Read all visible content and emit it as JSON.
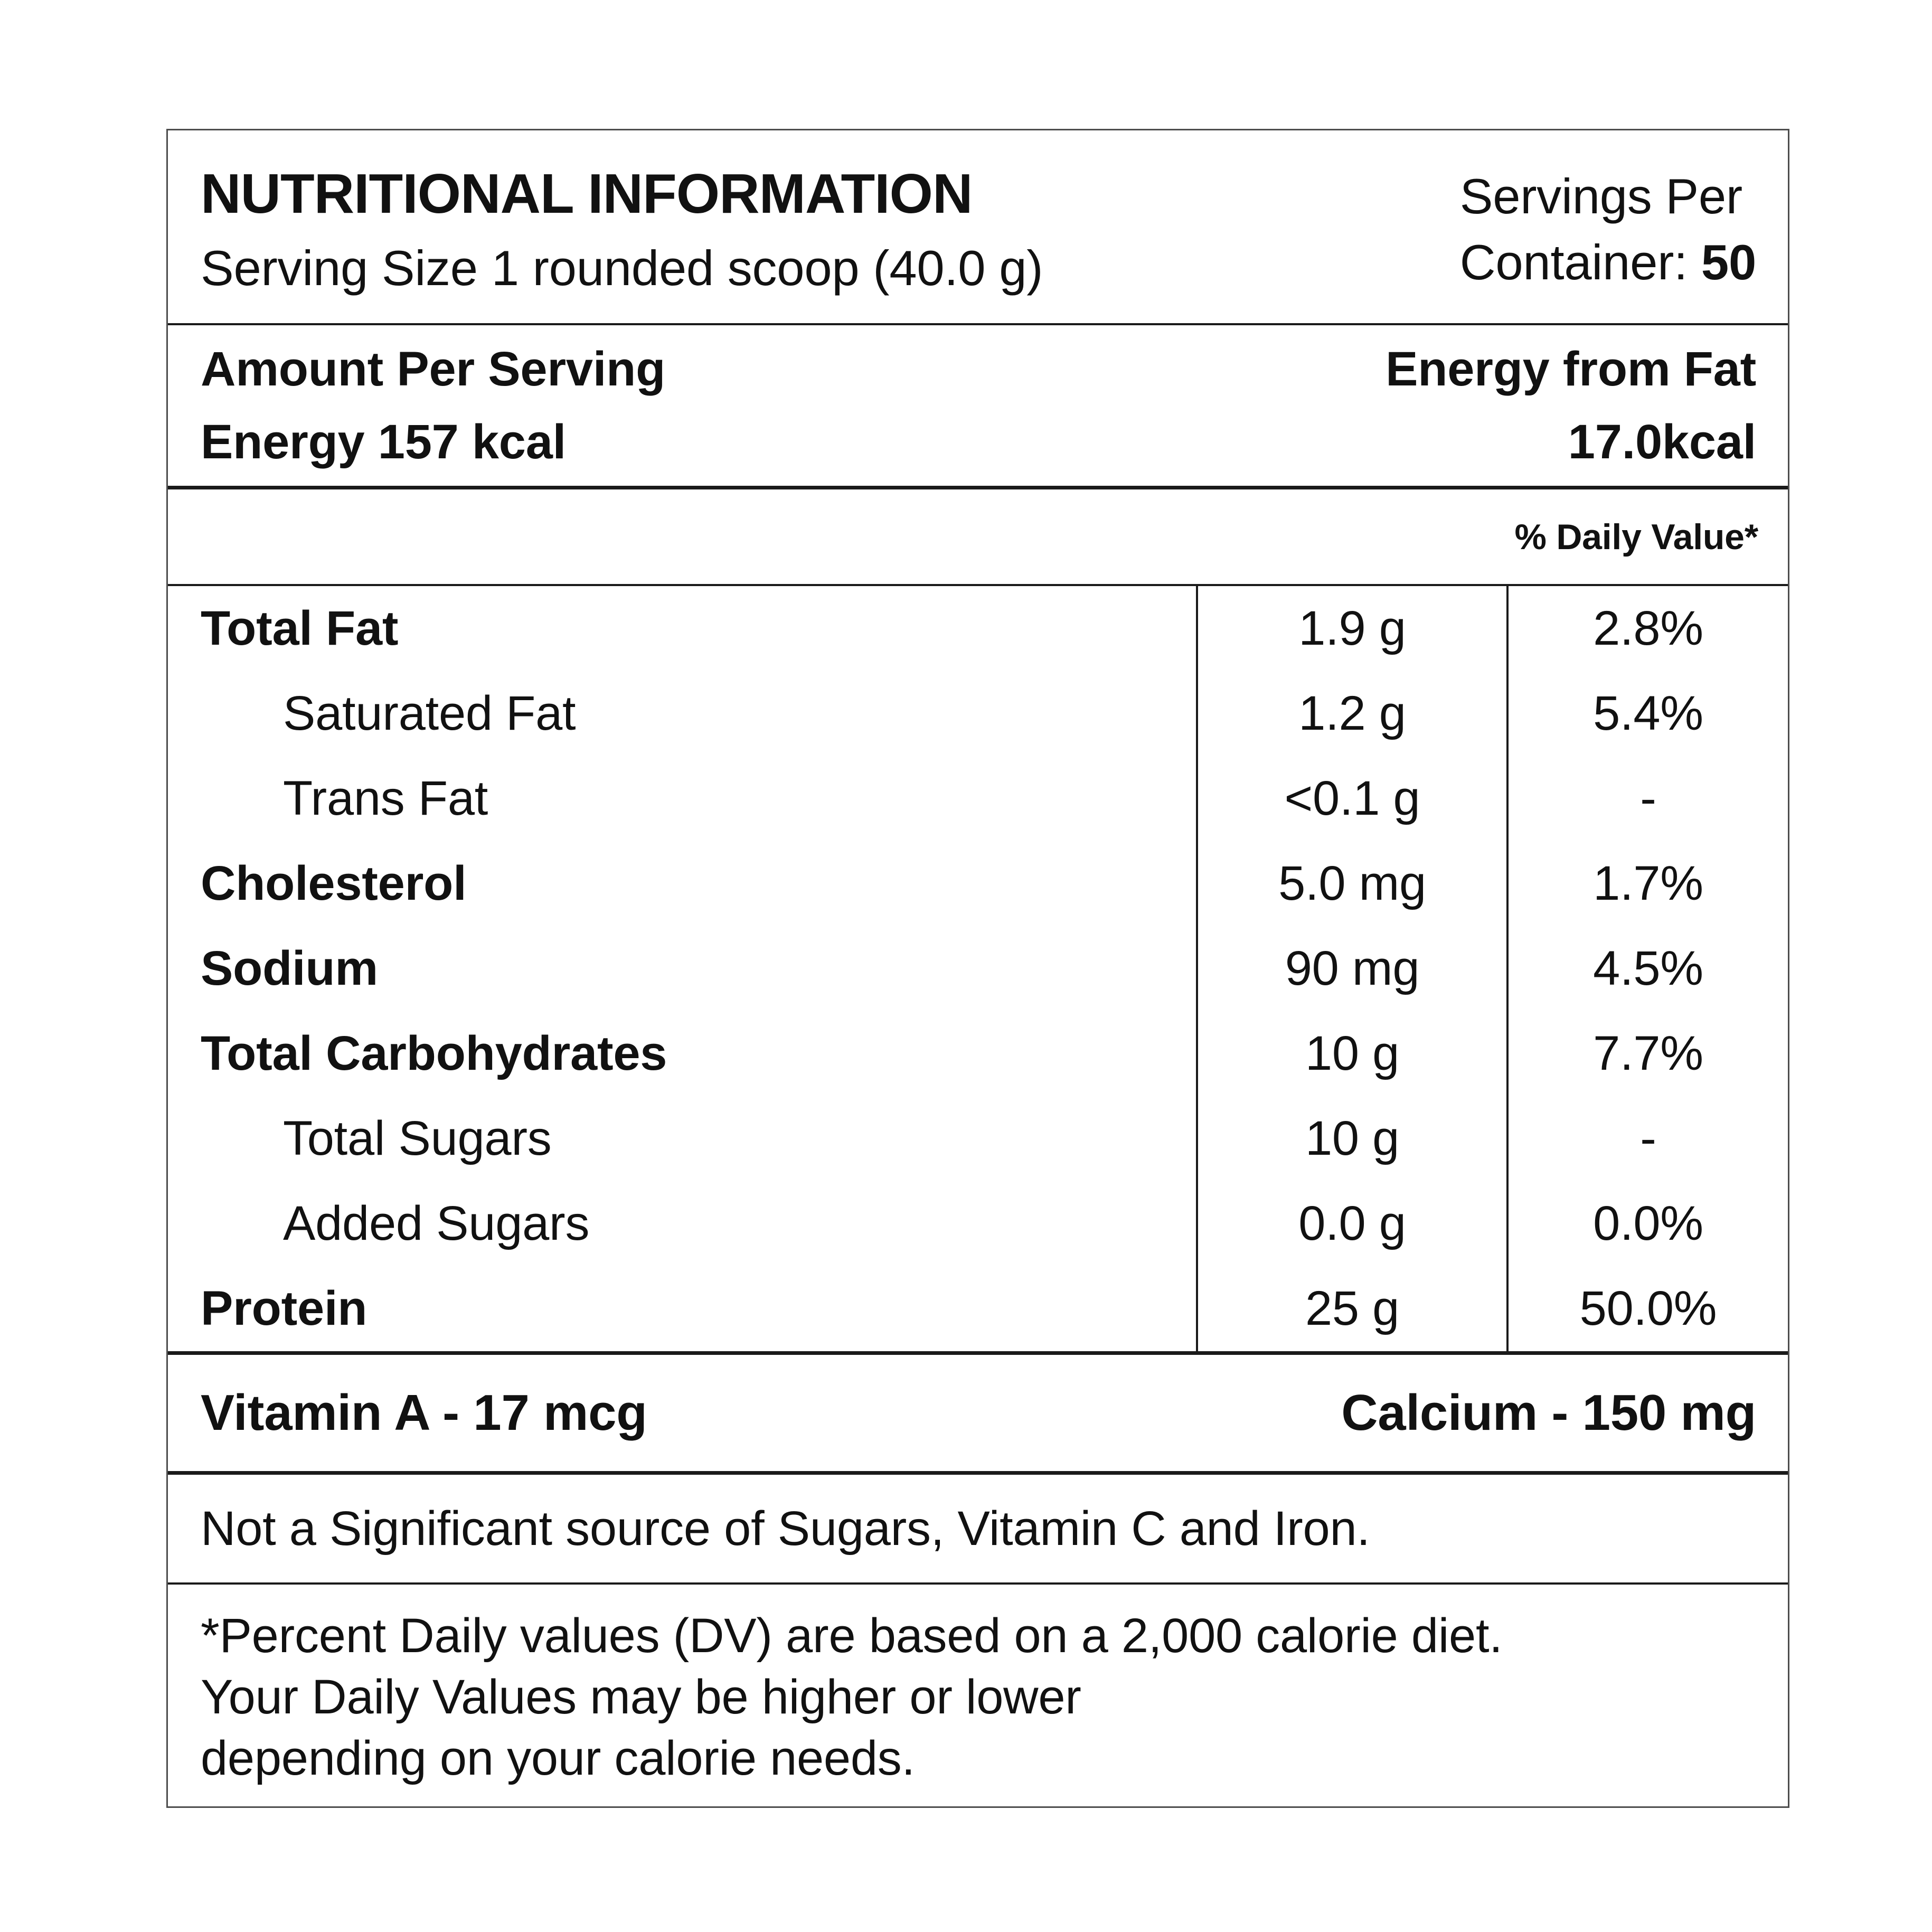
{
  "label": {
    "header": {
      "title": "NUTRITIONAL INFORMATION",
      "serving_size": "Serving Size 1 rounded scoop (40.0 g)",
      "servings_line1": "Servings Per",
      "servings_line2_prefix": "Container: ",
      "servings_value": "50"
    },
    "energy_section": {
      "amount_per_serving": "Amount Per Serving",
      "energy": "Energy 157 kcal",
      "energy_from_fat_label": "Energy from Fat",
      "energy_from_fat_value": "17.0kcal"
    },
    "daily_value_header": "% Daily Value*",
    "nutrients": {
      "rows": [
        {
          "name": "Total Fat",
          "amount": "1.9 g",
          "daily_value": "2.8%"
        },
        {
          "name": "Saturated Fat",
          "amount": "1.2 g",
          "daily_value": "5.4%"
        },
        {
          "name": "Trans Fat",
          "amount": "<0.1 g",
          "daily_value": "-"
        },
        {
          "name": "Cholesterol",
          "amount": "5.0 mg",
          "daily_value": "1.7%"
        },
        {
          "name": "Sodium",
          "amount": "90 mg",
          "daily_value": "4.5%"
        },
        {
          "name": "Total Carbohydrates",
          "amount": "10 g",
          "daily_value": "7.7%"
        },
        {
          "name": "Total Sugars",
          "amount": "10 g",
          "daily_value": "-"
        },
        {
          "name": "Added Sugars",
          "amount": "0.0 g",
          "daily_value": "0.0%"
        },
        {
          "name": "Protein",
          "amount": "25 g",
          "daily_value": "50.0%"
        }
      ]
    },
    "micronutrients": {
      "vitamin_a": "Vitamin A - 17 mcg",
      "calcium": "Calcium - 150 mg"
    },
    "disclaimer": "Not a Significant source of Sugars, Vitamin C and Iron.",
    "footnote": {
      "lines": [
        "*Percent Daily values (DV) are based on a 2,000 calorie diet.",
        "Your Daily Values may be higher or lower",
        "depending on your calorie needs."
      ]
    },
    "colors": {
      "background": "#ffffff",
      "text": "#111111",
      "rule": "#1a1a1a",
      "outer_border": "#4d4d4d"
    }
  }
}
